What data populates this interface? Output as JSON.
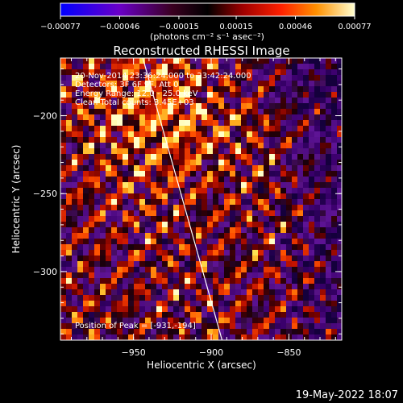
{
  "chart_data": {
    "type": "heatmap",
    "title": "Reconstructed RHESSI Image",
    "xlabel": "Heliocentric X (arcsec)",
    "ylabel": "Heliocentric Y (arcsec)",
    "xlim": [
      -997,
      -816
    ],
    "ylim": [
      -344,
      -163
    ],
    "xticks": [
      -950,
      -900,
      -850
    ],
    "yticks": [
      -200,
      -250,
      -300
    ],
    "xtick_labels": [
      "−950",
      "−900",
      "−850"
    ],
    "ytick_labels": [
      "−200",
      "−250",
      "−300"
    ],
    "colorbar": {
      "range": [
        -0.00077,
        0.00077
      ],
      "tick_values": [
        -0.00077,
        -0.00046,
        -0.00015,
        0.00015,
        0.00046,
        0.00077
      ],
      "tick_labels": [
        "−0.00077",
        "−0.00046",
        "−0.00015",
        "0.00015",
        "0.00046",
        "0.00077"
      ],
      "units": "(photons cm⁻² s⁻¹ asec⁻²)"
    },
    "annotations": [
      "20-Nov-2014 23:36:24.000 to 23:42:24.000",
      "Detectors: 3F 6F 9F, Att 0",
      "Energy Range: 12.0 - 25.0 keV",
      "Clean      Total counts: 3.45E+03"
    ],
    "peak_label": "Position of Peak = [-931,-194]",
    "peak": [
      -931,
      -194
    ],
    "limb_line": [
      [
        -944,
        -163
      ],
      [
        -893,
        -344
      ]
    ],
    "grid": false
  },
  "footer_date": "19-May-2022 18:07"
}
